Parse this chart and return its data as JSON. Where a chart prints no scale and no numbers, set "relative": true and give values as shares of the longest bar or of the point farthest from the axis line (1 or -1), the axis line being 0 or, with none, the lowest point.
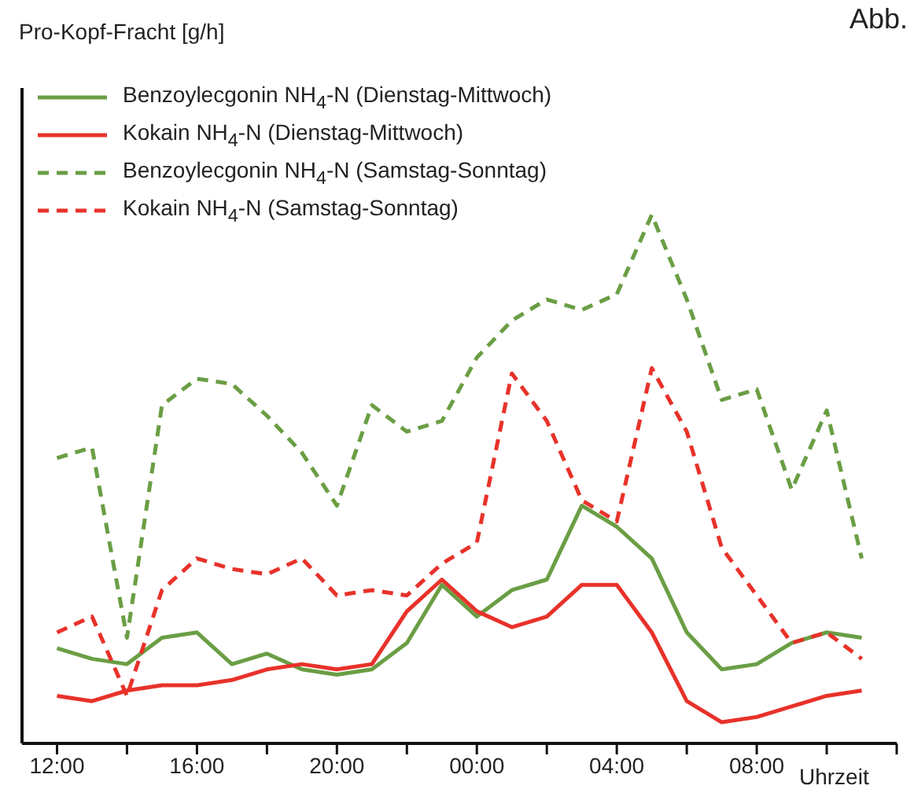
{
  "chart_data": {
    "type": "line",
    "xlabel": "Uhrzeit",
    "annotations": [
      "Pro-Kopf-Fracht [g/h]",
      "Abb."
    ],
    "relative": true,
    "legend": "top left",
    "marker": "none",
    "categories": [
      "12:00",
      null,
      null,
      null,
      "16:00",
      null,
      null,
      null,
      "20:00",
      null,
      null,
      null,
      "00:00",
      null,
      null,
      null,
      "04:00",
      null,
      null,
      null,
      "08:00",
      null,
      null,
      null
    ],
    "series": [
      {
        "name": "Benzoylecgonin NH$_{4}$-N (Dienstag-Mittwoch)",
        "color": "#6a9e44",
        "line_style": "solid",
        "values": [
          0.18,
          0.16,
          0.15,
          0.2,
          0.21,
          0.15,
          0.17,
          0.14,
          0.13,
          0.14,
          0.19,
          0.3,
          0.24,
          0.29,
          0.31,
          0.45,
          0.41,
          0.35,
          0.21,
          0.14,
          0.15,
          0.19,
          0.21,
          0.2
        ]
      },
      {
        "name": "Kokain NH$_{4}$-N (Dienstag-Mittwoch)",
        "color": "#e8322a",
        "line_style": "solid",
        "values": [
          0.09,
          0.08,
          0.1,
          0.11,
          0.11,
          0.12,
          0.14,
          0.15,
          0.14,
          0.15,
          0.25,
          0.31,
          0.25,
          0.22,
          0.24,
          0.3,
          0.3,
          0.21,
          0.08,
          0.04,
          0.05,
          0.07,
          0.09,
          0.1
        ]
      },
      {
        "name": "Benzoylecgonin NH$_{4}$-N (Samstag-Sonntag)",
        "color": "#6a9e44",
        "line_style": "dashed",
        "values": [
          0.54,
          0.56,
          0.2,
          0.64,
          0.69,
          0.68,
          0.62,
          0.55,
          0.45,
          0.64,
          0.59,
          0.61,
          0.73,
          0.8,
          0.84,
          0.82,
          0.85,
          1,
          0.84,
          0.65,
          0.67,
          0.48,
          0.63,
          0.35
        ]
      },
      {
        "name": "Kokain NH$_{4}$-N (Samstag-Sonntag)",
        "color": "#e8322a",
        "line_style": "dashed",
        "values": [
          0.21,
          0.24,
          0.09,
          0.29,
          0.35,
          0.33,
          0.32,
          0.35,
          0.28,
          0.29,
          0.28,
          0.34,
          0.38,
          0.7,
          0.61,
          0.46,
          0.42,
          0.71,
          0.59,
          0.37,
          0.28,
          0.19,
          0.21,
          0.16
        ]
      }
    ]
  }
}
